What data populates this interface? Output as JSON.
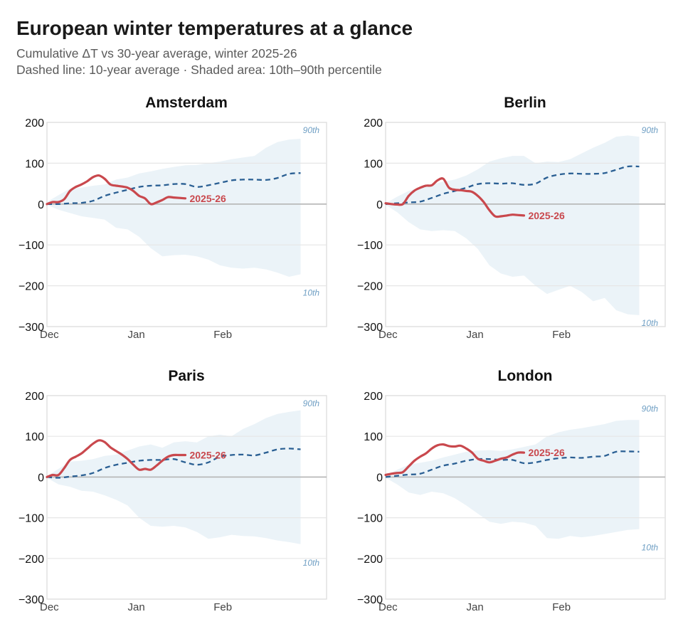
{
  "header": {
    "title": "European winter temperatures at a glance",
    "subtitle_line1": "Cumulative ΔT vs 30-year average, winter 2025-26",
    "subtitle_line2": "Dashed line: 10-year average · Shaded area: 10th–90th percentile"
  },
  "colors": {
    "current": "#c9484d",
    "average": "#2a5f93",
    "band": "#ebf3f8",
    "percentile_label": "#6f9fc4",
    "zero_line": "#b5b5b5",
    "grid": "#e6e6e6"
  },
  "chart_data": [
    {
      "type": "line",
      "title": "Amsterdam",
      "xlabel": "",
      "ylabel": "",
      "ylim": [
        -300,
        200
      ],
      "xlim_days": [
        0,
        97
      ],
      "yticks": [
        "200",
        "100",
        "0",
        "−100",
        "−200",
        "−300"
      ],
      "ytick_values": [
        200,
        100,
        0,
        -100,
        -200,
        -300
      ],
      "xticks": [
        {
          "label": "Dec",
          "day": 0
        },
        {
          "label": "Jan",
          "day": 31
        },
        {
          "label": "Feb",
          "day": 61
        }
      ],
      "band_labels": {
        "upper": "90th",
        "lower": "10th"
      },
      "series_label": "2025-26",
      "current": {
        "name": "2025-26",
        "x": [
          0,
          2,
          4,
          6,
          8,
          10,
          12,
          14,
          16,
          18,
          20,
          22,
          24,
          26,
          28,
          30,
          32,
          34,
          36,
          38,
          40,
          42,
          44,
          46,
          48
        ],
        "y": [
          0,
          5,
          5,
          12,
          32,
          42,
          48,
          56,
          66,
          70,
          62,
          48,
          45,
          43,
          40,
          32,
          20,
          14,
          0,
          4,
          10,
          17,
          16,
          15,
          14
        ]
      },
      "average": {
        "name": "10-year average",
        "x": [
          0,
          4,
          8,
          12,
          16,
          20,
          24,
          28,
          32,
          36,
          40,
          44,
          48,
          52,
          56,
          60,
          64,
          68,
          72,
          76,
          80,
          84,
          88
        ],
        "y": [
          0,
          0,
          2,
          3,
          8,
          20,
          28,
          35,
          42,
          45,
          46,
          49,
          49,
          42,
          46,
          52,
          58,
          60,
          60,
          59,
          64,
          74,
          76
        ]
      },
      "p90": {
        "x": [
          0,
          4,
          8,
          12,
          16,
          20,
          24,
          28,
          32,
          36,
          40,
          44,
          48,
          52,
          56,
          60,
          64,
          68,
          72,
          76,
          80,
          84,
          88
        ],
        "y": [
          5,
          22,
          38,
          40,
          45,
          48,
          60,
          65,
          75,
          80,
          86,
          91,
          95,
          96,
          100,
          104,
          110,
          114,
          118,
          138,
          152,
          158,
          160
        ]
      },
      "p10": {
        "x": [
          0,
          4,
          8,
          12,
          16,
          20,
          24,
          28,
          32,
          36,
          40,
          44,
          48,
          52,
          56,
          60,
          64,
          68,
          72,
          76,
          80,
          84,
          88
        ],
        "y": [
          -2,
          -14,
          -22,
          -30,
          -34,
          -38,
          -58,
          -62,
          -80,
          -108,
          -128,
          -125,
          -124,
          -128,
          -136,
          -150,
          -156,
          -158,
          -156,
          -160,
          -168,
          -178,
          -172
        ]
      }
    },
    {
      "type": "line",
      "title": "Berlin",
      "xlabel": "",
      "ylabel": "",
      "ylim": [
        -300,
        200
      ],
      "xlim_days": [
        0,
        97
      ],
      "yticks": [
        "200",
        "100",
        "0",
        "−100",
        "−200",
        "−300"
      ],
      "ytick_values": [
        200,
        100,
        0,
        -100,
        -200,
        -300
      ],
      "xticks": [
        {
          "label": "Dec",
          "day": 0
        },
        {
          "label": "Jan",
          "day": 31
        },
        {
          "label": "Feb",
          "day": 61
        }
      ],
      "band_labels": {
        "upper": "90th",
        "lower": "10th"
      },
      "series_label": "2025-26",
      "current": {
        "name": "2025-26",
        "x": [
          0,
          2,
          4,
          6,
          8,
          10,
          12,
          14,
          16,
          18,
          20,
          22,
          24,
          26,
          28,
          30,
          32,
          34,
          36,
          38,
          40,
          42,
          44,
          46,
          48
        ],
        "y": [
          2,
          0,
          -1,
          0,
          20,
          33,
          40,
          45,
          46,
          58,
          62,
          40,
          35,
          34,
          32,
          30,
          20,
          5,
          -15,
          -30,
          -30,
          -28,
          -26,
          -27,
          -28
        ]
      },
      "average": {
        "name": "10-year average",
        "x": [
          0,
          4,
          8,
          12,
          16,
          20,
          24,
          28,
          32,
          36,
          40,
          44,
          48,
          52,
          56,
          60,
          64,
          68,
          72,
          76,
          80,
          84,
          88
        ],
        "y": [
          0,
          2,
          4,
          6,
          15,
          25,
          32,
          40,
          49,
          51,
          50,
          51,
          47,
          50,
          65,
          72,
          75,
          74,
          74,
          76,
          84,
          92,
          92
        ]
      },
      "p90": {
        "x": [
          0,
          4,
          8,
          12,
          16,
          20,
          24,
          28,
          32,
          36,
          40,
          44,
          48,
          52,
          56,
          60,
          64,
          68,
          72,
          76,
          80,
          84,
          88
        ],
        "y": [
          2,
          18,
          32,
          40,
          48,
          55,
          60,
          70,
          85,
          104,
          112,
          118,
          118,
          100,
          104,
          103,
          110,
          124,
          138,
          150,
          165,
          168,
          165
        ]
      },
      "p10": {
        "x": [
          0,
          4,
          8,
          12,
          16,
          20,
          24,
          28,
          32,
          36,
          40,
          44,
          48,
          52,
          56,
          60,
          64,
          68,
          72,
          76,
          80,
          84,
          88
        ],
        "y": [
          -2,
          -20,
          -44,
          -62,
          -66,
          -64,
          -66,
          -84,
          -110,
          -150,
          -170,
          -178,
          -175,
          -200,
          -220,
          -210,
          -200,
          -215,
          -238,
          -230,
          -260,
          -270,
          -272
        ]
      }
    },
    {
      "type": "line",
      "title": "Paris",
      "xlabel": "",
      "ylabel": "",
      "ylim": [
        -300,
        200
      ],
      "xlim_days": [
        0,
        97
      ],
      "yticks": [
        "200",
        "100",
        "0",
        "−100",
        "−200",
        "−300"
      ],
      "ytick_values": [
        200,
        100,
        0,
        -100,
        -200,
        -300
      ],
      "xticks": [
        {
          "label": "Dec",
          "day": 0
        },
        {
          "label": "Jan",
          "day": 31
        },
        {
          "label": "Feb",
          "day": 61
        }
      ],
      "band_labels": {
        "upper": "90th",
        "lower": "10th"
      },
      "series_label": "2025-26",
      "current": {
        "name": "2025-26",
        "x": [
          0,
          2,
          4,
          6,
          8,
          10,
          12,
          14,
          16,
          18,
          20,
          22,
          24,
          26,
          28,
          30,
          32,
          34,
          36,
          38,
          40,
          42,
          44,
          46,
          48
        ],
        "y": [
          0,
          5,
          5,
          22,
          42,
          50,
          58,
          70,
          82,
          90,
          86,
          73,
          64,
          55,
          44,
          30,
          18,
          20,
          18,
          28,
          40,
          50,
          54,
          54,
          54
        ]
      },
      "average": {
        "name": "10-year average",
        "x": [
          0,
          4,
          8,
          12,
          16,
          20,
          24,
          28,
          32,
          36,
          40,
          44,
          48,
          52,
          56,
          60,
          64,
          68,
          72,
          76,
          80,
          84,
          88
        ],
        "y": [
          0,
          -2,
          1,
          4,
          10,
          22,
          30,
          35,
          40,
          42,
          42,
          44,
          36,
          30,
          36,
          50,
          54,
          55,
          53,
          60,
          68,
          70,
          68
        ]
      },
      "p90": {
        "x": [
          0,
          4,
          8,
          12,
          16,
          20,
          24,
          28,
          32,
          36,
          40,
          44,
          48,
          52,
          56,
          60,
          64,
          68,
          72,
          76,
          80,
          84,
          88
        ],
        "y": [
          2,
          20,
          38,
          40,
          44,
          52,
          55,
          65,
          75,
          80,
          72,
          85,
          88,
          85,
          100,
          104,
          100,
          118,
          130,
          145,
          155,
          160,
          164
        ]
      },
      "p10": {
        "x": [
          0,
          4,
          8,
          12,
          16,
          20,
          24,
          28,
          32,
          36,
          40,
          44,
          48,
          52,
          56,
          60,
          64,
          68,
          72,
          76,
          80,
          84,
          88
        ],
        "y": [
          -2,
          -18,
          -24,
          -34,
          -36,
          -45,
          -56,
          -70,
          -100,
          -120,
          -122,
          -120,
          -124,
          -135,
          -152,
          -148,
          -142,
          -145,
          -146,
          -150,
          -156,
          -160,
          -165
        ]
      }
    },
    {
      "type": "line",
      "title": "London",
      "xlabel": "",
      "ylabel": "",
      "ylim": [
        -300,
        200
      ],
      "xlim_days": [
        0,
        97
      ],
      "yticks": [
        "200",
        "100",
        "0",
        "−100",
        "−200",
        "−300"
      ],
      "ytick_values": [
        200,
        100,
        0,
        -100,
        -200,
        -300
      ],
      "xticks": [
        {
          "label": "Dec",
          "day": 0
        },
        {
          "label": "Jan",
          "day": 31
        },
        {
          "label": "Feb",
          "day": 61
        }
      ],
      "band_labels": {
        "upper": "90th",
        "lower": "10th"
      },
      "series_label": "2025-26",
      "current": {
        "name": "2025-26",
        "x": [
          0,
          2,
          4,
          6,
          8,
          10,
          12,
          14,
          16,
          18,
          20,
          22,
          24,
          26,
          28,
          30,
          32,
          34,
          36,
          38,
          40,
          42,
          44,
          46,
          48
        ],
        "y": [
          5,
          8,
          10,
          12,
          26,
          40,
          50,
          58,
          70,
          78,
          80,
          76,
          75,
          77,
          70,
          60,
          45,
          40,
          36,
          40,
          45,
          48,
          55,
          60,
          60
        ]
      },
      "average": {
        "name": "10-year average",
        "x": [
          0,
          4,
          8,
          12,
          16,
          20,
          24,
          28,
          32,
          36,
          40,
          44,
          48,
          52,
          56,
          60,
          64,
          68,
          72,
          76,
          80,
          84,
          88
        ],
        "y": [
          0,
          3,
          6,
          8,
          18,
          28,
          33,
          40,
          44,
          44,
          42,
          42,
          34,
          36,
          42,
          46,
          48,
          47,
          50,
          52,
          62,
          63,
          62
        ]
      },
      "p90": {
        "x": [
          0,
          4,
          8,
          12,
          16,
          20,
          24,
          28,
          32,
          36,
          40,
          44,
          48,
          52,
          56,
          60,
          64,
          68,
          72,
          76,
          80,
          84,
          88
        ],
        "y": [
          2,
          18,
          30,
          35,
          40,
          48,
          55,
          62,
          65,
          66,
          64,
          68,
          74,
          80,
          100,
          110,
          116,
          120,
          125,
          130,
          138,
          140,
          140
        ]
      },
      "p10": {
        "x": [
          0,
          4,
          8,
          12,
          16,
          20,
          24,
          28,
          32,
          36,
          40,
          44,
          48,
          52,
          56,
          60,
          64,
          68,
          72,
          76,
          80,
          84,
          88
        ],
        "y": [
          -2,
          -18,
          -38,
          -44,
          -36,
          -40,
          -52,
          -70,
          -90,
          -110,
          -115,
          -110,
          -112,
          -120,
          -150,
          -152,
          -145,
          -148,
          -145,
          -140,
          -135,
          -130,
          -128
        ]
      }
    }
  ]
}
